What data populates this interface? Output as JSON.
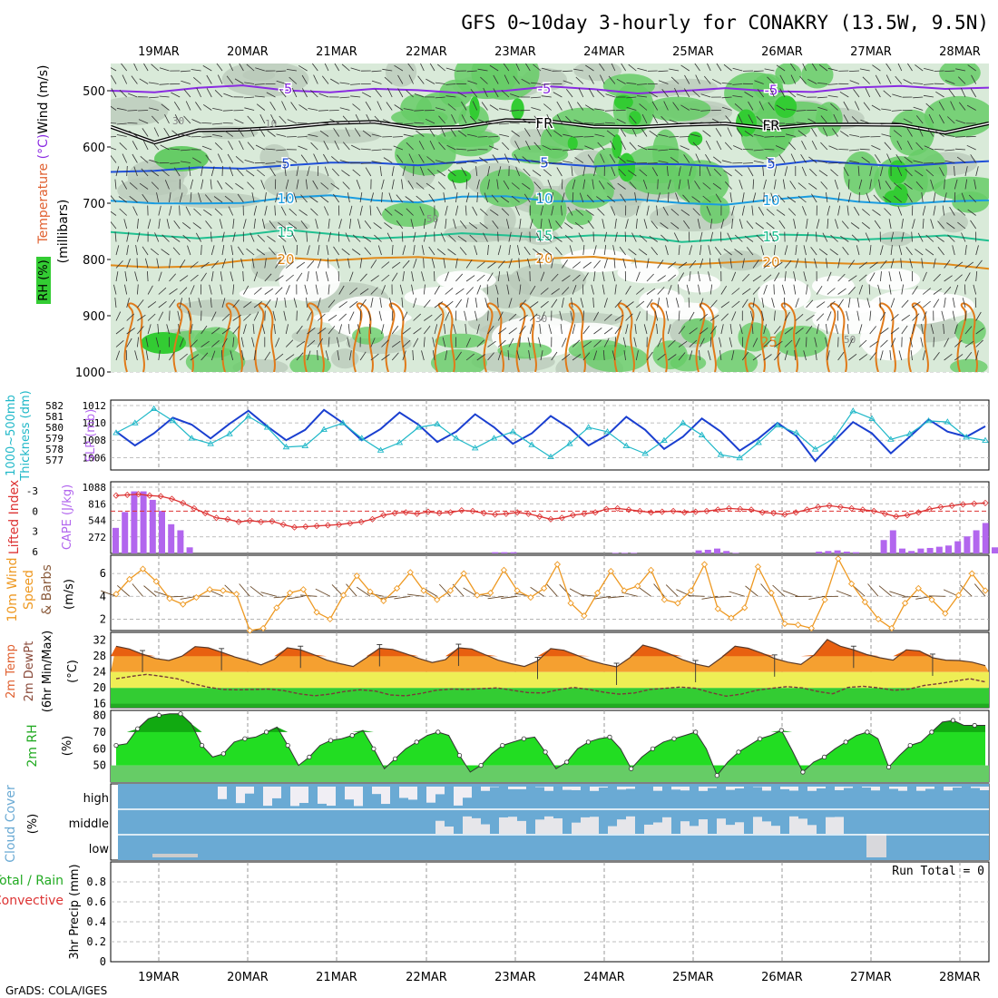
{
  "title": "GFS 0~10day 3-hourly for CONAKRY (13.5W, 9.5N)",
  "footer": "GrADS: COLA/IGES",
  "dates": [
    "19MAR",
    "20MAR",
    "21MAR",
    "22MAR",
    "23MAR",
    "24MAR",
    "25MAR",
    "26MAR",
    "27MAR",
    "28MAR"
  ],
  "colors": {
    "rh_green": "#33cc33",
    "rh_mid": "#99cc99",
    "rh_light": "#d9ead9",
    "temp_purple": "#8a2be2",
    "temp_blue": "#1f4fd8",
    "temp_cyan": "#1a9ce0",
    "temp_teal": "#20c090",
    "temp_orange": "#e08a1a",
    "slp_blue": "#1a3fd0",
    "thick_cyan": "#20b8c8",
    "li_red": "#dd3333",
    "cape_purple": "#b266ee",
    "wind_orange": "#ee9922",
    "cloud_blue": "#6aaad4",
    "cloud_white": "#f0eef4"
  },
  "chart_data": [
    {
      "type": "heatmap",
      "panel": "upper-air",
      "ylabel_parts": [
        "Wind (m/s)",
        "Temperature (°C)",
        "RH (%)"
      ],
      "ylabel2": "(millibars)",
      "yticks": [
        500,
        600,
        700,
        800,
        900,
        1000
      ],
      "ylim": [
        1000,
        450
      ],
      "isotherms": [
        {
          "label": "-5",
          "color": "#8a2be2",
          "levels_mb": [
            500,
            498,
            496,
            495,
            497,
            499,
            500,
            502,
            500,
            498,
            497,
            498,
            500,
            501,
            500,
            499,
            498,
            497,
            495,
            493,
            492
          ]
        },
        {
          "label": "FR",
          "color": "#000000",
          "levels_mb": [
            560,
            590,
            575,
            570,
            560,
            558,
            560,
            565,
            560,
            555,
            558,
            560,
            562,
            565,
            560,
            562,
            560,
            565,
            560,
            570,
            560
          ]
        },
        {
          "label": "5",
          "color": "#1f4fd8",
          "levels_mb": [
            640,
            645,
            640,
            635,
            630,
            632,
            630,
            628,
            626,
            625,
            628,
            630,
            632,
            635,
            632,
            630,
            628,
            632,
            630,
            628,
            630
          ]
        },
        {
          "label": "10",
          "color": "#1a9ce0",
          "levels_mb": [
            695,
            705,
            700,
            695,
            692,
            690,
            692,
            695,
            692,
            690,
            692,
            695,
            698,
            700,
            698,
            695,
            692,
            695,
            698,
            700,
            698
          ]
        },
        {
          "label": "15",
          "color": "#20c090",
          "levels_mb": [
            755,
            760,
            758,
            755,
            752,
            755,
            758,
            760,
            758,
            755,
            758,
            760,
            762,
            765,
            762,
            760,
            758,
            760,
            762,
            762,
            765
          ]
        },
        {
          "label": "20",
          "color": "#e08a1a",
          "levels_mb": [
            815,
            812,
            808,
            805,
            800,
            798,
            795,
            800,
            802,
            800,
            798,
            800,
            802,
            805,
            808,
            805,
            802,
            805,
            808,
            810,
            812
          ]
        }
      ],
      "contour_labels": [
        "30",
        "50",
        "10",
        "25"
      ]
    },
    {
      "type": "line",
      "panel": "thickness-slp",
      "ylabel_left": "1000~500mb Thickness (dm)",
      "ylabel_right": "SLP (mb)",
      "yticks_left": [
        577,
        578,
        579,
        580,
        581,
        582
      ],
      "yticks_right": [
        1006,
        1008,
        1010,
        1012
      ],
      "series": [
        {
          "name": "SLP (mb)",
          "axis": "right",
          "color": "#1a3fd0",
          "values": [
            1009.0,
            1007.4,
            1008.8,
            1010.6,
            1009.8,
            1008.2,
            1009.9,
            1011.4,
            1009.6,
            1008.0,
            1009.2,
            1011.5,
            1010.0,
            1008.0,
            1009.3,
            1011.2,
            1009.8,
            1007.8,
            1009.0,
            1011.0,
            1009.5,
            1007.6,
            1008.8,
            1010.8,
            1009.4,
            1007.4,
            1008.6,
            1010.7,
            1009.2,
            1007.0,
            1008.4,
            1010.5,
            1009.0,
            1006.8,
            1008.2,
            1010.0,
            1008.5,
            1005.6,
            1007.9,
            1010.1,
            1008.8,
            1006.5,
            1008.4,
            1010.4,
            1009.0,
            1008.4,
            1009.6
          ]
        },
        {
          "name": "Thickness (dm)",
          "axis": "left",
          "color": "#20b8c8",
          "values": [
            579.5,
            580.4,
            581.7,
            580.6,
            579.0,
            578.5,
            579.4,
            581.0,
            580.0,
            578.2,
            578.3,
            579.8,
            580.4,
            579.0,
            577.9,
            578.6,
            580.0,
            580.3,
            579.0,
            578.1,
            579.0,
            579.6,
            578.4,
            577.3,
            578.5,
            580.0,
            579.6,
            578.3,
            577.6,
            578.8,
            580.4,
            579.3,
            577.5,
            577.2,
            578.6,
            580.2,
            579.5,
            578.0,
            579.0,
            581.5,
            580.8,
            578.9,
            579.4,
            580.6,
            580.5,
            579.1,
            578.8
          ]
        }
      ]
    },
    {
      "type": "bar",
      "panel": "cape-li",
      "ylabel_left": "Lifted Index",
      "ylabel_right": "CAPE (J/kg)",
      "yticks_left": [
        -3,
        0,
        3,
        6
      ],
      "yticks_right": [
        272,
        544,
        816,
        1088
      ],
      "series": [
        {
          "name": "CAPE (J/kg)",
          "color": "#b266ee",
          "values": [
            420,
            680,
            1020,
            1020,
            880,
            700,
            480,
            380,
            100,
            0,
            0,
            0,
            0,
            0,
            0,
            0,
            0,
            0,
            0,
            0,
            0,
            0,
            0,
            0,
            0,
            0,
            0,
            0,
            0,
            0,
            0,
            0,
            0,
            0,
            0,
            0,
            0,
            0,
            0,
            0,
            0,
            20,
            20,
            20,
            0,
            0,
            0,
            0,
            0,
            0,
            0,
            0,
            0,
            0,
            10,
            10,
            10,
            0,
            0,
            0,
            0,
            0,
            0,
            50,
            60,
            80,
            40,
            10,
            0,
            0,
            0,
            0,
            0,
            0,
            0,
            0,
            30,
            40,
            50,
            30,
            20,
            0,
            0,
            220,
            380,
            80,
            40,
            80,
            90,
            110,
            130,
            200,
            280,
            380,
            500,
            100
          ]
        },
        {
          "name": "Lifted Index",
          "color": "#dd3333",
          "values": [
            -2.3,
            -2.4,
            -2.5,
            -2.3,
            -2.2,
            -1.8,
            -1.2,
            -0.4,
            0.3,
            1.0,
            1.2,
            1.6,
            1.4,
            1.6,
            1.5,
            2.0,
            2.4,
            2.3,
            2.2,
            2.1,
            2.0,
            1.8,
            1.6,
            1.2,
            0.6,
            0.3,
            0.2,
            0.4,
            0.1,
            0.3,
            0.2,
            -0.1,
            0.0,
            0.3,
            0.5,
            0.4,
            0.2,
            0.4,
            0.8,
            1.2,
            1.0,
            0.6,
            0.4,
            0.2,
            -0.3,
            -0.4,
            -0.2,
            0.0,
            0.2,
            0.1,
            0.0,
            0.2,
            0.1,
            0.0,
            -0.2,
            -0.4,
            -0.3,
            -0.2,
            0.2,
            0.3,
            0.5,
            0.2,
            -0.2,
            -0.6,
            -0.8,
            -0.6,
            -0.4,
            -0.2,
            0.0,
            0.4,
            0.8,
            0.6,
            0.2,
            -0.3,
            -0.6,
            -0.8,
            -1.0,
            -1.1,
            -1.2
          ]
        },
        {
          "name": "Zero line",
          "color": "#dd3333",
          "values": [
            0
          ]
        }
      ]
    },
    {
      "type": "line",
      "panel": "wind",
      "ylabel": "10m Wind Speed & Barbs (m/s)",
      "yticks": [
        2,
        4,
        6
      ],
      "ylim": [
        1,
        7.5
      ],
      "series": [
        {
          "name": "Speed (m/s)",
          "color": "#ee9922",
          "values": [
            4.2,
            5.5,
            6.4,
            5.3,
            3.8,
            3.3,
            3.9,
            4.6,
            4.5,
            4.2,
            1.0,
            1.2,
            3.0,
            4.3,
            4.6,
            2.6,
            2.0,
            4.1,
            5.8,
            4.4,
            3.6,
            4.7,
            6.1,
            4.5,
            3.7,
            4.5,
            6.0,
            4.1,
            4.3,
            6.3,
            4.5,
            3.9,
            4.7,
            6.8,
            3.4,
            2.3,
            4.3,
            6.2,
            4.5,
            4.9,
            6.3,
            3.7,
            3.4,
            4.5,
            6.8,
            2.9,
            2.1,
            3.0,
            6.6,
            4.3,
            1.6,
            1.5,
            1.2,
            3.7,
            7.3,
            5.1,
            3.5,
            2.0,
            1.2,
            3.4,
            4.7,
            3.7,
            2.5,
            4.1,
            6.0,
            4.5
          ]
        }
      ]
    },
    {
      "type": "area",
      "panel": "temperature",
      "ylabel": "2m Temp 2m DewPt (6hr Min/Max) (°C)",
      "yticks": [
        16,
        20,
        24,
        28,
        32
      ],
      "ylim": [
        15,
        34
      ],
      "series": [
        {
          "name": "2m Temp (°C)",
          "color": "#e86010",
          "values": [
            30.5,
            29.8,
            28.5,
            27.4,
            26.9,
            28.0,
            30.4,
            30.1,
            29.0,
            27.8,
            26.9,
            25.8,
            27.2,
            30.1,
            29.6,
            28.4,
            27.0,
            26.1,
            25.4,
            27.6,
            30.0,
            29.7,
            28.6,
            27.4,
            26.4,
            27.1,
            30.1,
            29.8,
            28.4,
            27.0,
            26.1,
            25.4,
            26.8,
            29.9,
            29.5,
            28.2,
            26.9,
            26.0,
            25.3,
            27.6,
            30.8,
            29.9,
            28.6,
            27.1,
            26.0,
            25.3,
            27.7,
            30.5,
            30.0,
            28.8,
            27.4,
            26.5,
            25.9,
            28.3,
            32.2,
            30.5,
            29.6,
            28.4,
            27.6,
            27.0,
            29.6,
            29.3,
            27.6,
            27.0,
            26.9,
            26.5,
            25.6
          ]
        },
        {
          "name": "2m DewPt (°C)",
          "color": "#8a4a3a",
          "values": [
            22.3,
            22.9,
            23.4,
            22.9,
            22.3,
            21.1,
            20.2,
            19.6,
            19.5,
            19.6,
            19.7,
            19.3,
            18.5,
            18.0,
            18.4,
            19.1,
            19.5,
            19.2,
            18.2,
            18.0,
            18.6,
            19.4,
            19.7,
            19.6,
            19.8,
            20.0,
            19.4,
            18.8,
            18.7,
            19.5,
            20.1,
            19.6,
            18.9,
            18.4,
            18.7,
            19.6,
            19.9,
            20.2,
            19.9,
            18.8,
            17.9,
            18.4,
            19.4,
            19.9,
            20.3,
            20.0,
            19.1,
            18.5,
            20.1,
            20.4,
            20.0,
            19.4,
            19.7,
            20.6,
            21.1,
            21.7,
            22.3,
            21.5
          ]
        }
      ]
    },
    {
      "type": "area",
      "panel": "rh2m",
      "ylabel": "2m RH (%)",
      "yticks": [
        50,
        60,
        70,
        80
      ],
      "ylim": [
        40,
        83
      ],
      "series": [
        {
          "name": "2m RH (%)",
          "color": "#33cc33",
          "values": [
            62,
            63,
            72,
            78,
            80,
            81,
            81,
            75,
            62,
            55,
            57,
            64,
            66,
            67,
            70,
            73,
            62,
            50,
            55,
            62,
            65,
            66,
            68,
            71,
            60,
            48,
            54,
            60,
            64,
            68,
            70,
            68,
            56,
            46,
            50,
            57,
            62,
            64,
            66,
            67,
            58,
            48,
            52,
            60,
            64,
            66,
            67,
            60,
            48,
            55,
            60,
            64,
            66,
            68,
            70,
            60,
            44,
            52,
            58,
            62,
            66,
            68,
            71,
            59,
            46,
            52,
            55,
            60,
            64,
            68,
            70,
            66,
            49,
            56,
            62,
            64,
            70,
            76,
            77,
            74,
            74,
            74
          ]
        }
      ]
    },
    {
      "type": "heatmap",
      "panel": "cloud",
      "ylabel": "Cloud Cover (%)",
      "rows": [
        "high",
        "middle",
        "low"
      ]
    },
    {
      "type": "bar",
      "panel": "precip",
      "ylabel": "3hr Precip (mm)",
      "ylabel_left_parts": [
        "Total / Rain",
        "Convective"
      ],
      "yticks": [
        0,
        0.2,
        0.4,
        0.6,
        0.8
      ],
      "ylim": [
        0,
        1.0
      ],
      "run_total": "Run Total = 0",
      "series": [
        {
          "name": "Total / Rain",
          "color": "#33cc33",
          "values": []
        }
      ]
    }
  ]
}
